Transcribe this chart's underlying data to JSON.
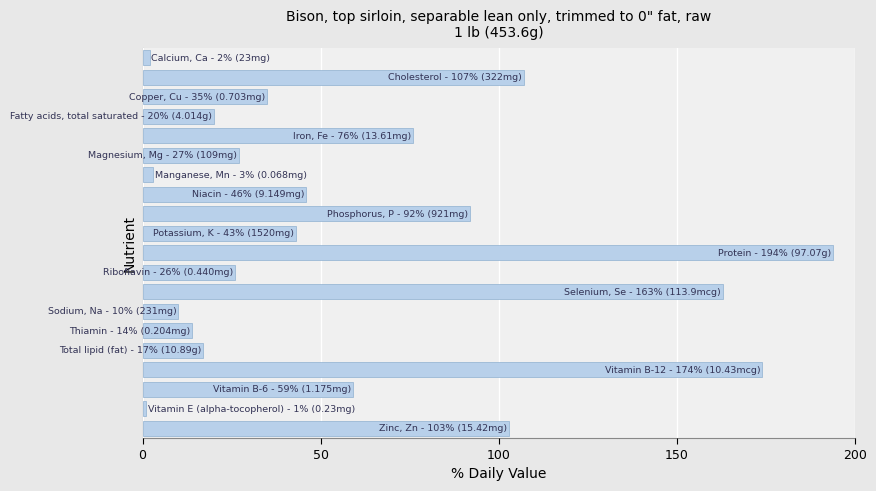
{
  "title": "Bison, top sirloin, separable lean only, trimmed to 0\" fat, raw\n1 lb (453.6g)",
  "xlabel": "% Daily Value",
  "ylabel": "Nutrient",
  "plot_bg_color": "#f0f0f0",
  "fig_bg_color": "#e8e8e8",
  "bar_color": "#b8d0ea",
  "bar_edge_color": "#8fb0d0",
  "text_color": "#333355",
  "xlim": [
    0,
    200
  ],
  "xticks": [
    0,
    50,
    100,
    150,
    200
  ],
  "nutrients": [
    {
      "label": "Calcium, Ca - 2% (23mg)",
      "value": 2
    },
    {
      "label": "Cholesterol - 107% (322mg)",
      "value": 107
    },
    {
      "label": "Copper, Cu - 35% (0.703mg)",
      "value": 35
    },
    {
      "label": "Fatty acids, total saturated - 20% (4.014g)",
      "value": 20
    },
    {
      "label": "Iron, Fe - 76% (13.61mg)",
      "value": 76
    },
    {
      "label": "Magnesium, Mg - 27% (109mg)",
      "value": 27
    },
    {
      "label": "Manganese, Mn - 3% (0.068mg)",
      "value": 3
    },
    {
      "label": "Niacin - 46% (9.149mg)",
      "value": 46
    },
    {
      "label": "Phosphorus, P - 92% (921mg)",
      "value": 92
    },
    {
      "label": "Potassium, K - 43% (1520mg)",
      "value": 43
    },
    {
      "label": "Protein - 194% (97.07g)",
      "value": 194
    },
    {
      "label": "Riboflavin - 26% (0.440mg)",
      "value": 26
    },
    {
      "label": "Selenium, Se - 163% (113.9mcg)",
      "value": 163
    },
    {
      "label": "Sodium, Na - 10% (231mg)",
      "value": 10
    },
    {
      "label": "Thiamin - 14% (0.204mg)",
      "value": 14
    },
    {
      "label": "Total lipid (fat) - 17% (10.89g)",
      "value": 17
    },
    {
      "label": "Vitamin B-12 - 174% (10.43mcg)",
      "value": 174
    },
    {
      "label": "Vitamin B-6 - 59% (1.175mg)",
      "value": 59
    },
    {
      "label": "Vitamin E (alpha-tocopherol) - 1% (0.23mg)",
      "value": 1
    },
    {
      "label": "Zinc, Zn - 103% (15.42mg)",
      "value": 103
    }
  ]
}
